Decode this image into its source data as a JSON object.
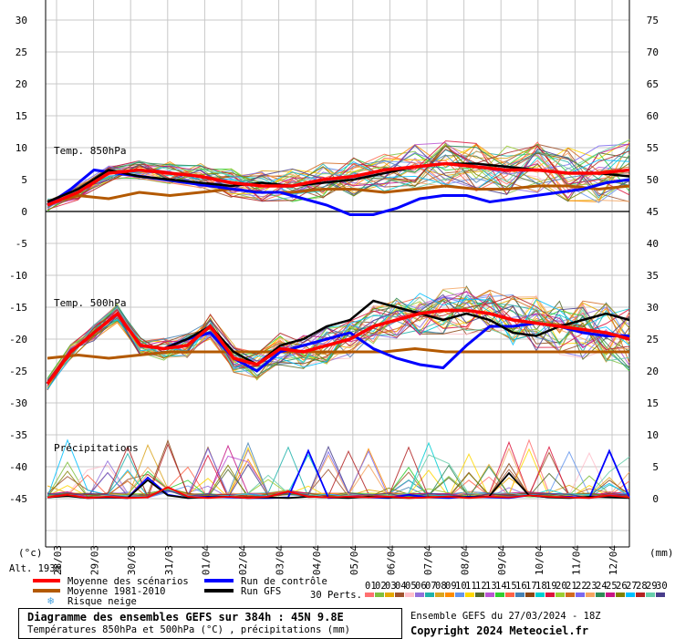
{
  "chart_data": {
    "type": "line",
    "x": [
      "28/03",
      "29/03",
      "30/03",
      "31/03",
      "01/04",
      "02/04",
      "03/04",
      "04/04",
      "05/04",
      "06/04",
      "07/04",
      "08/04",
      "09/04",
      "10/04",
      "11/04",
      "12/04"
    ],
    "left_axis_label": "(°c)",
    "right_axis_label": "(mm)",
    "left_ticks": [
      "30",
      "25",
      "20",
      "15",
      "10",
      "5",
      "0",
      "-5",
      "-10",
      "-15",
      "-20",
      "-25",
      "-30",
      "-35",
      "-40",
      "-45"
    ],
    "right_ticks": [
      "75",
      "70",
      "65",
      "60",
      "55",
      "50",
      "45",
      "40",
      "35",
      "30",
      "25",
      "20",
      "15",
      "10",
      "5",
      "0"
    ],
    "panels": [
      {
        "label": "Temp. 850hPa",
        "ylim": [
          0,
          30
        ]
      },
      {
        "label": "Temp. 500hPa",
        "ylim": [
          -30,
          0
        ]
      },
      {
        "label": "Précipitations",
        "ylim": [
          0,
          15
        ],
        "unit": "mm"
      }
    ],
    "series": [
      {
        "name": "Moyenne des scénarios",
        "color": "#ff0000",
        "t850": [
          1.0,
          3.0,
          6.0,
          6.5,
          6.0,
          5.5,
          4.5,
          4.0,
          4.0,
          5.0,
          5.5,
          6.5,
          7.0,
          7.5,
          7.0,
          6.5,
          6.5,
          6.0,
          6.0,
          6.5
        ],
        "t500": [
          -27,
          -22,
          -19,
          -16,
          -21,
          -21.5,
          -21,
          -18,
          -23,
          -24,
          -21.5,
          -22,
          -21,
          -20,
          -18,
          -17,
          -16,
          -15.5,
          -15.5,
          -16,
          -17,
          -17.5,
          -18,
          -18.5,
          -19,
          -20
        ],
        "precip": [
          0.2,
          0.6,
          0.1,
          0.3,
          0.1,
          0.2,
          1.8,
          0.3,
          0.1,
          0.3,
          0.1,
          0.3,
          1.1,
          0.3,
          0.2,
          0.3,
          0.2,
          0.3,
          0.1,
          0.2,
          0.3,
          0.1,
          0.3,
          0.2,
          0.5,
          0.3,
          0.2,
          0.1,
          0.5,
          0.2
        ]
      },
      {
        "name": "Moyenne 1981-2010",
        "color": "#b35900",
        "t850": [
          1.5,
          2.5,
          2.0,
          3.0,
          2.5,
          3.0,
          3.5,
          3.0,
          3.0,
          3.5,
          3.5,
          3.0,
          3.5,
          4.0,
          3.5,
          3.5,
          4.0,
          4.0,
          3.5,
          4.0
        ],
        "t500": [
          -23,
          -22.5,
          -23,
          -22.5,
          -22,
          -22,
          -22,
          -22,
          -22,
          -22,
          -22,
          -22,
          -21.5,
          -22,
          -22,
          -22,
          -22,
          -22,
          -22,
          -22
        ],
        "precip": []
      },
      {
        "name": "Run de contrôle",
        "color": "#0000ff",
        "t850": [
          1.0,
          3.5,
          6.5,
          6.0,
          5.5,
          5.0,
          4.5,
          4.0,
          3.5,
          3.0,
          3.0,
          2.0,
          1.0,
          -0.5,
          -0.5,
          0.5,
          2.0,
          2.5,
          2.5,
          1.5,
          2.0,
          2.5,
          3.0,
          3.5,
          4.5,
          5.0
        ],
        "t500": [
          -27,
          -22,
          -19,
          -16,
          -21,
          -21.5,
          -20,
          -19,
          -23,
          -25,
          -22,
          -21,
          -20,
          -19,
          -21.5,
          -23,
          -24,
          -24.5,
          -21,
          -18,
          -18,
          -17.5,
          -18,
          -19,
          -19.5,
          -19.5
        ],
        "precip": [
          0.2,
          0.5,
          0.1,
          0.2,
          0.1,
          3.3,
          0.6,
          0.1,
          0.3,
          0.2,
          0.1,
          0.1,
          0.2,
          7.5,
          0.1,
          0.3,
          0.2,
          0.1,
          0.6,
          0.2,
          0.1,
          0.3,
          0.2,
          0.1,
          0.5,
          0.2,
          0.3,
          0.1,
          7.5,
          0.2
        ]
      },
      {
        "name": "Run GFS",
        "color": "#000000",
        "t850": [
          1.5,
          3.5,
          6.5,
          5.5,
          5.0,
          4.5,
          4.0,
          4.5,
          4.0,
          4.5,
          5.0,
          6.0,
          7.0,
          7.5,
          7.5,
          7.0,
          6.5,
          6.0,
          6.0,
          5.5
        ],
        "t500": [
          -27,
          -22,
          -19,
          -16,
          -21,
          -21.5,
          -20,
          -18,
          -22,
          -24,
          -21,
          -20,
          -18,
          -17,
          -14,
          -15,
          -16,
          -17,
          -16,
          -17,
          -19,
          -19.5,
          -18,
          -17,
          -16,
          -17
        ],
        "precip": [
          0.2,
          0.4,
          0.1,
          0.2,
          0.1,
          2.9,
          0.5,
          0.1,
          0.2,
          0.3,
          0.1,
          0.2,
          0.1,
          0.3,
          0.2,
          0.1,
          0.3,
          0.2,
          0.1,
          0.2,
          0.3,
          0.2,
          0.3,
          4.0,
          0.5,
          0.2,
          0.1,
          0.3,
          0.2,
          0.1
        ]
      }
    ],
    "perturbation_colors": [
      "#ff7070",
      "#7fbf3f",
      "#e6a800",
      "#a0522d",
      "#ffc0cb",
      "#9370db",
      "#20b2aa",
      "#daa520",
      "#ff8c00",
      "#6495ed",
      "#ffd700",
      "#556b2f",
      "#ba55d3",
      "#32cd32",
      "#ff6347",
      "#4682b4",
      "#8b4513",
      "#00ced1",
      "#dc143c",
      "#9acd32",
      "#d2691e",
      "#7b68ee",
      "#f4a460",
      "#2e8b57",
      "#c71585",
      "#808000",
      "#00bfff",
      "#b22222",
      "#66cdaa",
      "#483d8b"
    ],
    "grid": true
  },
  "labels": {
    "alt": "Alt. 193m",
    "perts": "30 Perts.",
    "snow_risk": "Risque neige",
    "pert_numbers": [
      "01",
      "02",
      "03",
      "04",
      "05",
      "06",
      "07",
      "08",
      "09",
      "10",
      "11",
      "12",
      "13",
      "14",
      "15",
      "16",
      "17",
      "18",
      "19",
      "20",
      "21",
      "22",
      "23",
      "24",
      "25",
      "26",
      "27",
      "28",
      "29",
      "30"
    ]
  },
  "footer": {
    "title": "Diagramme des ensembles GEFS sur 384h : 45N 9.8E",
    "subtitle": "Températures 850hPa et 500hPa (°C) , précipitations (mm)",
    "run": "Ensemble GEFS du 27/03/2024 - 18Z",
    "copyright": "Copyright 2024 Meteociel.fr"
  }
}
